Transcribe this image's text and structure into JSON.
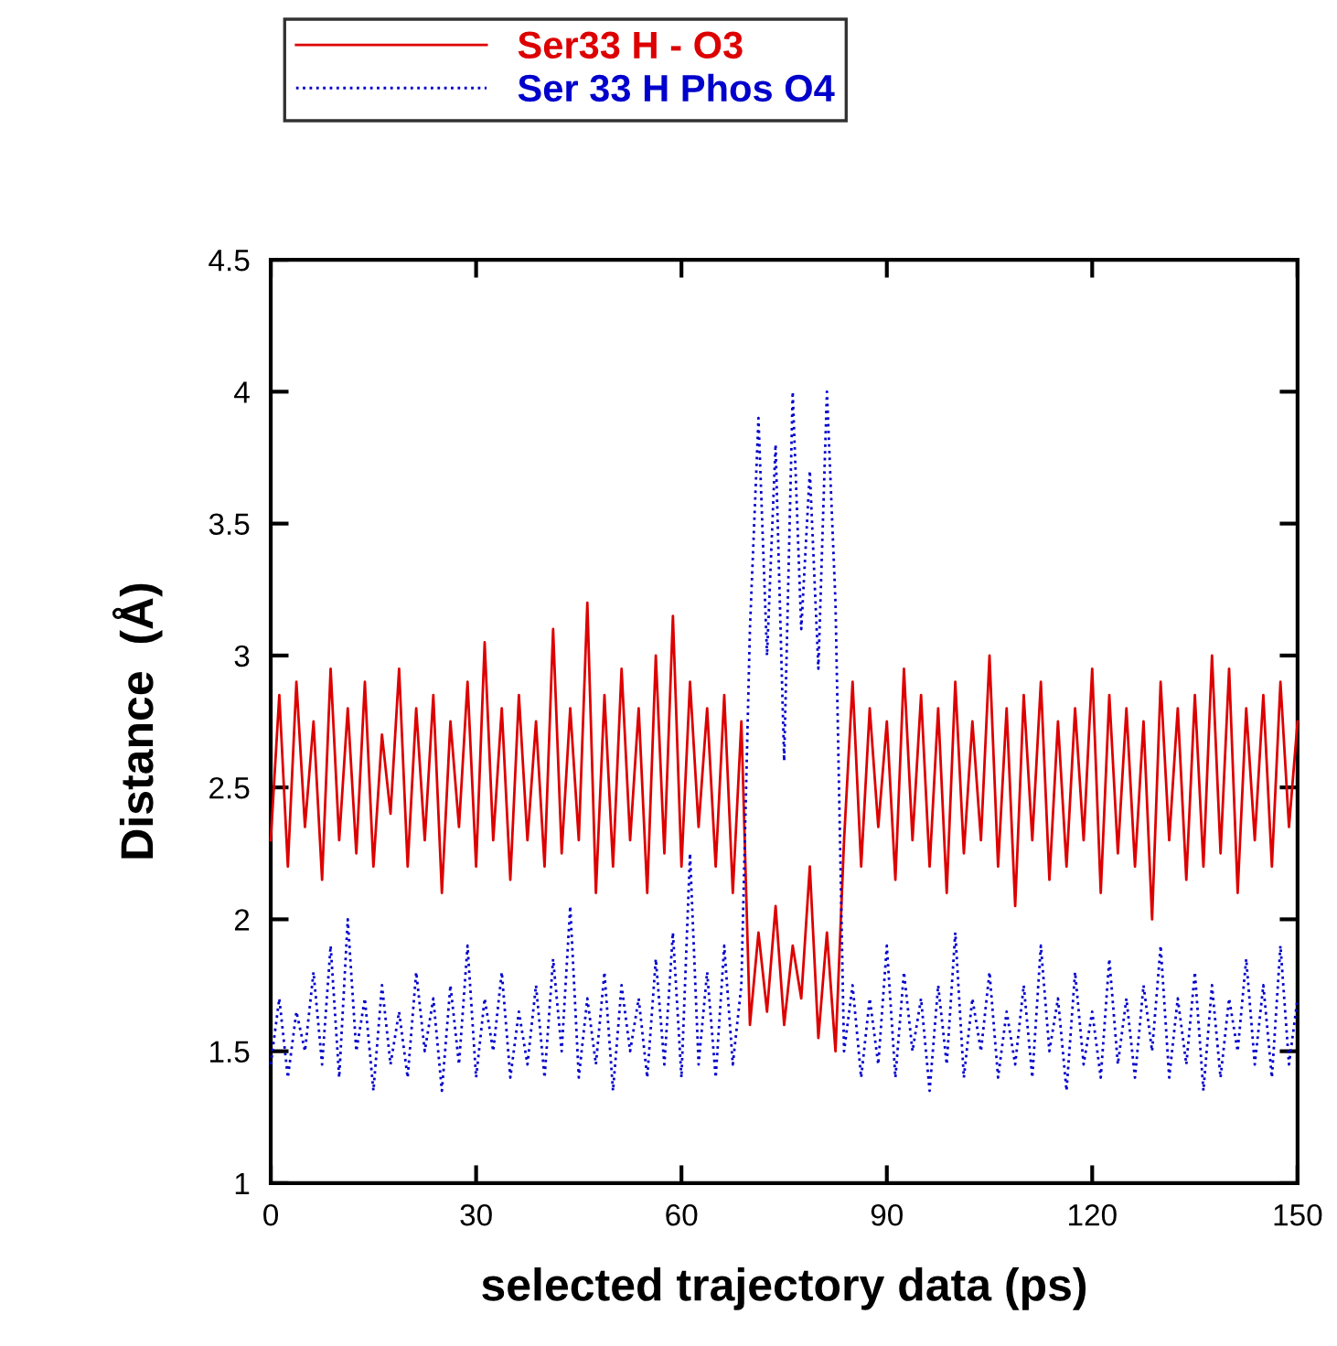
{
  "chart_data": {
    "type": "line",
    "xlabel": "selected trajectory data (ps)",
    "ylabel": "Distance  (Å)",
    "x": [
      0,
      1.25,
      2.5,
      3.75,
      5,
      6.25,
      7.5,
      8.75,
      10,
      11.25,
      12.5,
      13.75,
      15,
      16.25,
      17.5,
      18.75,
      20,
      21.25,
      22.5,
      23.75,
      25,
      26.25,
      27.5,
      28.75,
      30,
      31.25,
      32.5,
      33.75,
      35,
      36.25,
      37.5,
      38.75,
      40,
      41.25,
      42.5,
      43.75,
      45,
      46.25,
      47.5,
      48.75,
      50,
      51.25,
      52.5,
      53.75,
      55,
      56.25,
      57.5,
      58.75,
      60,
      61.25,
      62.5,
      63.75,
      65,
      66.25,
      67.5,
      68.75,
      70,
      71.25,
      72.5,
      73.75,
      75,
      76.25,
      77.5,
      78.75,
      80,
      81.25,
      82.5,
      83.75,
      85,
      86.25,
      87.5,
      88.75,
      90,
      91.25,
      92.5,
      93.75,
      95,
      96.25,
      97.5,
      98.75,
      100,
      101.25,
      102.5,
      103.75,
      105,
      106.25,
      107.5,
      108.75,
      110,
      111.25,
      112.5,
      113.75,
      115,
      116.25,
      117.5,
      118.75,
      120,
      121.25,
      122.5,
      123.75,
      125,
      126.25,
      127.5,
      128.75,
      130,
      131.25,
      132.5,
      133.75,
      135,
      136.25,
      137.5,
      138.75,
      140,
      141.25,
      142.5,
      143.75,
      145,
      146.25,
      147.5,
      148.75,
      150
    ],
    "series": [
      {
        "name": "Ser33 H - O3",
        "color": "#dd0000",
        "line_style": "solid",
        "values": [
          2.3,
          2.85,
          2.2,
          2.9,
          2.35,
          2.75,
          2.15,
          2.95,
          2.3,
          2.8,
          2.25,
          2.9,
          2.2,
          2.7,
          2.4,
          2.95,
          2.2,
          2.8,
          2.3,
          2.85,
          2.1,
          2.75,
          2.35,
          2.9,
          2.2,
          3.05,
          2.3,
          2.8,
          2.15,
          2.85,
          2.3,
          2.75,
          2.2,
          3.1,
          2.25,
          2.8,
          2.3,
          3.2,
          2.1,
          2.85,
          2.2,
          2.95,
          2.3,
          2.8,
          2.1,
          3.0,
          2.25,
          3.15,
          2.2,
          2.9,
          2.35,
          2.8,
          2.2,
          2.85,
          2.1,
          2.75,
          1.6,
          1.95,
          1.65,
          2.05,
          1.6,
          1.9,
          1.7,
          2.2,
          1.55,
          1.95,
          1.5,
          2.3,
          2.9,
          2.2,
          2.8,
          2.35,
          2.75,
          2.15,
          2.95,
          2.3,
          2.85,
          2.2,
          2.8,
          2.1,
          2.9,
          2.25,
          2.75,
          2.3,
          3.0,
          2.2,
          2.8,
          2.05,
          2.85,
          2.3,
          2.9,
          2.15,
          2.75,
          2.2,
          2.8,
          2.3,
          2.95,
          2.1,
          2.85,
          2.25,
          2.8,
          2.2,
          2.75,
          2.0,
          2.9,
          2.3,
          2.8,
          2.15,
          2.85,
          2.2,
          3.0,
          2.25,
          2.95,
          2.1,
          2.8,
          2.3,
          2.85,
          2.2,
          2.9,
          2.35,
          2.75
        ]
      },
      {
        "name": "Ser 33 H Phos O4",
        "color": "#0000cc",
        "line_style": "dotted",
        "values": [
          1.45,
          1.7,
          1.4,
          1.65,
          1.5,
          1.8,
          1.45,
          1.9,
          1.4,
          2.0,
          1.5,
          1.7,
          1.35,
          1.75,
          1.45,
          1.65,
          1.4,
          1.8,
          1.5,
          1.7,
          1.35,
          1.75,
          1.45,
          1.9,
          1.4,
          1.7,
          1.5,
          1.8,
          1.4,
          1.65,
          1.45,
          1.75,
          1.4,
          1.85,
          1.5,
          2.05,
          1.4,
          1.7,
          1.45,
          1.8,
          1.35,
          1.75,
          1.5,
          1.7,
          1.4,
          1.85,
          1.45,
          1.95,
          1.4,
          2.25,
          1.45,
          1.8,
          1.4,
          1.9,
          1.45,
          1.75,
          3.1,
          3.9,
          3.0,
          3.8,
          2.6,
          4.0,
          3.1,
          3.7,
          2.95,
          4.0,
          3.2,
          1.5,
          1.75,
          1.4,
          1.7,
          1.45,
          1.9,
          1.4,
          1.8,
          1.5,
          1.7,
          1.35,
          1.75,
          1.45,
          1.95,
          1.4,
          1.7,
          1.5,
          1.8,
          1.4,
          1.65,
          1.45,
          1.75,
          1.4,
          1.9,
          1.5,
          1.7,
          1.35,
          1.8,
          1.45,
          1.65,
          1.4,
          1.85,
          1.45,
          1.7,
          1.4,
          1.75,
          1.5,
          1.9,
          1.4,
          1.7,
          1.45,
          1.8,
          1.35,
          1.75,
          1.4,
          1.7,
          1.5,
          1.85,
          1.45,
          1.75,
          1.4,
          1.9,
          1.45,
          1.7
        ]
      }
    ],
    "xlim": [
      0,
      150
    ],
    "xticks": [
      0,
      30,
      60,
      90,
      120,
      150
    ],
    "ylim": [
      1,
      4.5
    ],
    "yticks": [
      1,
      1.5,
      2,
      2.5,
      3,
      3.5,
      4,
      4.5
    ],
    "grid": false,
    "legend": "top left",
    "marker": "none"
  }
}
